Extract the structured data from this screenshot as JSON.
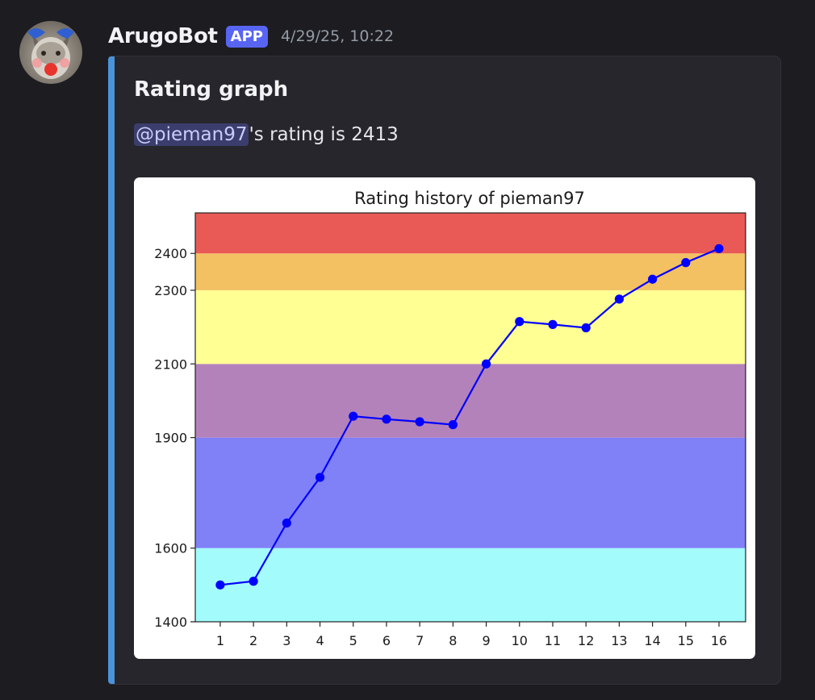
{
  "message": {
    "username": "ArugoBot",
    "badge": "APP",
    "timestamp": "4/29/25, 10:22"
  },
  "embed": {
    "title": "Rating graph",
    "mention": "@pieman97",
    "description_suffix": "'s rating is 2413",
    "accent_color": "#4b93d9"
  },
  "chart_data": {
    "type": "line",
    "title": "Rating history of pieman97",
    "xlabel": "",
    "ylabel": "",
    "x": [
      1,
      2,
      3,
      4,
      5,
      6,
      7,
      8,
      9,
      10,
      11,
      12,
      13,
      14,
      15,
      16
    ],
    "series": [
      {
        "color": "#0000ff",
        "marker": "circle",
        "values": [
          1500,
          1510,
          1668,
          1792,
          1958,
          1950,
          1943,
          1935,
          2100,
          2215,
          2207,
          2198,
          2276,
          2330,
          2375,
          2413
        ]
      }
    ],
    "xlim": [
      0.25,
      16.8
    ],
    "ylim": [
      1400,
      2510
    ],
    "yticks": [
      1400,
      1600,
      1900,
      2100,
      2300,
      2400
    ],
    "xticks": [
      1,
      2,
      3,
      4,
      5,
      6,
      7,
      8,
      9,
      10,
      11,
      12,
      13,
      14,
      15,
      16
    ],
    "grid": false,
    "bands": [
      {
        "from": 1400,
        "to": 1600,
        "color": "#a3fbfb"
      },
      {
        "from": 1600,
        "to": 1900,
        "color": "#8080f7"
      },
      {
        "from": 1900,
        "to": 2100,
        "color": "#b482ba"
      },
      {
        "from": 2100,
        "to": 2300,
        "color": "#ffff93"
      },
      {
        "from": 2300,
        "to": 2400,
        "color": "#f3c062"
      },
      {
        "from": 2400,
        "to": 2510,
        "color": "#e95a56"
      }
    ]
  }
}
